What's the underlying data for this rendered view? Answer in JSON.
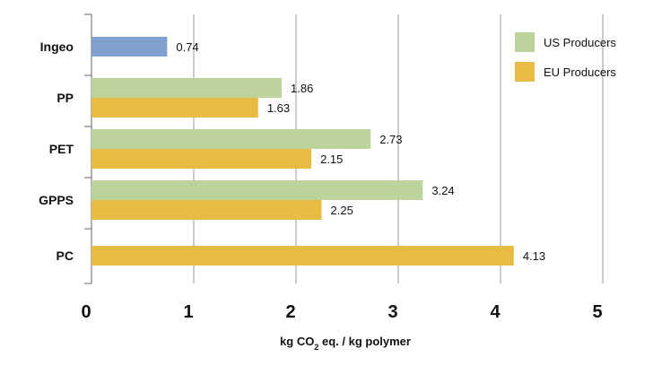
{
  "chart_data": {
    "type": "bar",
    "orientation": "horizontal",
    "categories": [
      "Ingeo",
      "PP",
      "PET",
      "GPPS",
      "PC"
    ],
    "series": [
      {
        "name": "Ingeo",
        "color": "#7fa0cc",
        "values": [
          0.74,
          null,
          null,
          null,
          null
        ]
      },
      {
        "name": "US Producers",
        "color": "#bcd39c",
        "values": [
          null,
          1.86,
          2.73,
          3.24,
          null
        ]
      },
      {
        "name": "EU Producers",
        "color": "#e8bb44",
        "values": [
          null,
          1.63,
          2.15,
          2.25,
          4.13
        ]
      }
    ],
    "data_labels": {
      "Ingeo": [
        "0.74"
      ],
      "PP": [
        "1.86",
        "1.63"
      ],
      "PET": [
        "2.73",
        "2.15"
      ],
      "GPPS": [
        "3.24",
        "2.25"
      ],
      "PC": [
        "4.13"
      ]
    },
    "xlabel": {
      "main": "kg CO",
      "sub": "2",
      "rest": " eq. / kg polymer"
    },
    "xticks": [
      "0",
      "1",
      "2",
      "3",
      "4",
      "5"
    ],
    "xlim": [
      0,
      5
    ],
    "grid": "vertical",
    "legend": {
      "placement": "top-right",
      "entries": [
        {
          "label": "US Producers",
          "color": "#bcd39c"
        },
        {
          "label": "EU Producers",
          "color": "#e8bb44"
        }
      ]
    }
  }
}
